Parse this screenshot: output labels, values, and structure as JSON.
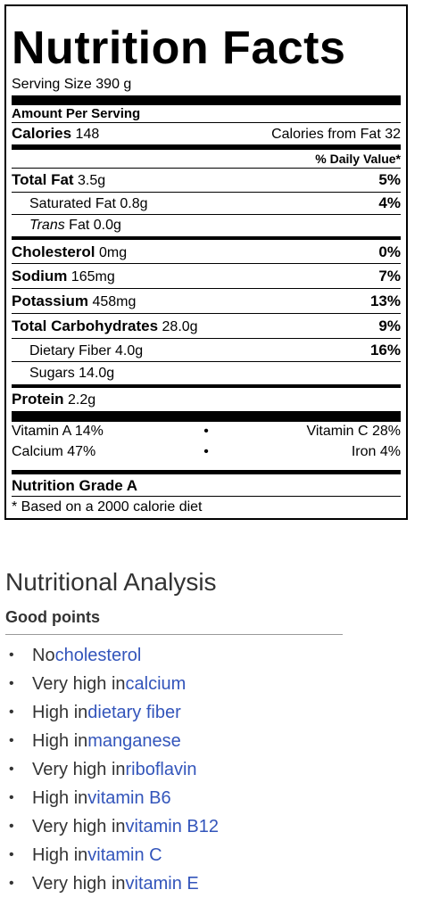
{
  "label": {
    "title": "Nutrition Facts",
    "serving_size": "Serving Size 390 g",
    "amount_per_serving": "Amount Per Serving",
    "calories_label": "Calories",
    "calories_value": "148",
    "calories_from_fat": "Calories from Fat 32",
    "daily_value_header": "% Daily Value*",
    "total_fat_label": "Total Fat",
    "total_fat_value": "3.5g",
    "total_fat_pct": "5%",
    "sat_fat_label": "Saturated Fat 0.8g",
    "sat_fat_pct": "4%",
    "trans_fat_italic": "Trans",
    "trans_fat_rest": " Fat 0.0g",
    "cholesterol_label": "Cholesterol",
    "cholesterol_value": "0mg",
    "cholesterol_pct": "0%",
    "sodium_label": "Sodium",
    "sodium_value": "165mg",
    "sodium_pct": "7%",
    "potassium_label": "Potassium",
    "potassium_value": "458mg",
    "potassium_pct": "13%",
    "carbs_label": "Total Carbohydrates",
    "carbs_value": "28.0g",
    "carbs_pct": "9%",
    "fiber_label": "Dietary Fiber 4.0g",
    "fiber_pct": "16%",
    "sugars_label": "Sugars 14.0g",
    "protein_label": "Protein",
    "protein_value": "2.2g",
    "vitamin_a": "Vitamin A 14%",
    "vitamin_c": "Vitamin C 28%",
    "calcium": "Calcium 47%",
    "iron": "Iron 4%",
    "dot": "•",
    "grade": "Nutrition Grade A",
    "footnote": "* Based on a 2000 calorie diet"
  },
  "analysis": {
    "title": "Nutritional Analysis",
    "good_points_heading": "Good points",
    "bullet": "•",
    "points": [
      {
        "prefix": "No ",
        "link": "cholesterol"
      },
      {
        "prefix": "Very high in ",
        "link": "calcium"
      },
      {
        "prefix": "High in ",
        "link": "dietary fiber"
      },
      {
        "prefix": "High in ",
        "link": "manganese"
      },
      {
        "prefix": "Very high in ",
        "link": "riboflavin"
      },
      {
        "prefix": "High in ",
        "link": "vitamin B6"
      },
      {
        "prefix": "Very high in ",
        "link": "vitamin B12"
      },
      {
        "prefix": "High in ",
        "link": "vitamin C"
      },
      {
        "prefix": "Very high in ",
        "link": "vitamin E"
      }
    ]
  },
  "colors": {
    "link": "#3355bb",
    "text": "#333333",
    "label_border": "#000000"
  }
}
